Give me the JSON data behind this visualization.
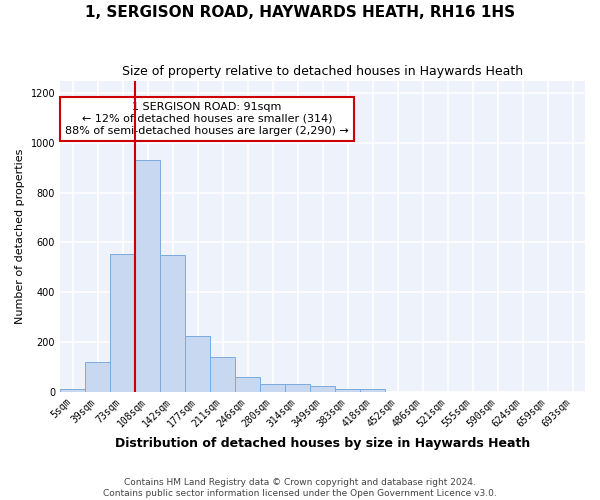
{
  "title": "1, SERGISON ROAD, HAYWARDS HEATH, RH16 1HS",
  "subtitle": "Size of property relative to detached houses in Haywards Heath",
  "xlabel": "Distribution of detached houses by size in Haywards Heath",
  "ylabel": "Number of detached properties",
  "bar_color": "#c8d8f0",
  "bar_edge_color": "#7aaadc",
  "fig_bg": "#ffffff",
  "ax_bg": "#eef2fb",
  "grid_color": "#ffffff",
  "categories": [
    "5sqm",
    "39sqm",
    "73sqm",
    "108sqm",
    "142sqm",
    "177sqm",
    "211sqm",
    "246sqm",
    "280sqm",
    "314sqm",
    "349sqm",
    "383sqm",
    "418sqm",
    "452sqm",
    "486sqm",
    "521sqm",
    "555sqm",
    "590sqm",
    "624sqm",
    "659sqm",
    "693sqm"
  ],
  "values": [
    10,
    120,
    555,
    930,
    548,
    225,
    140,
    58,
    33,
    33,
    22,
    10,
    10,
    0,
    0,
    0,
    0,
    0,
    0,
    0,
    0
  ],
  "ylim": [
    0,
    1250
  ],
  "yticks": [
    0,
    200,
    400,
    600,
    800,
    1000,
    1200
  ],
  "annotation_text": "1 SERGISON ROAD: 91sqm\n← 12% of detached houses are smaller (314)\n88% of semi-detached houses are larger (2,290) →",
  "annotation_box_color": "#ffffff",
  "annotation_box_edgecolor": "#cc0000",
  "footer_text": "Contains HM Land Registry data © Crown copyright and database right 2024.\nContains public sector information licensed under the Open Government Licence v3.0.",
  "vline_color": "#cc0000",
  "vline_x_index": 3.0,
  "title_fontsize": 11,
  "subtitle_fontsize": 9,
  "ylabel_fontsize": 8,
  "xlabel_fontsize": 9,
  "tick_fontsize": 7,
  "annotation_fontsize": 8,
  "footer_fontsize": 6.5
}
